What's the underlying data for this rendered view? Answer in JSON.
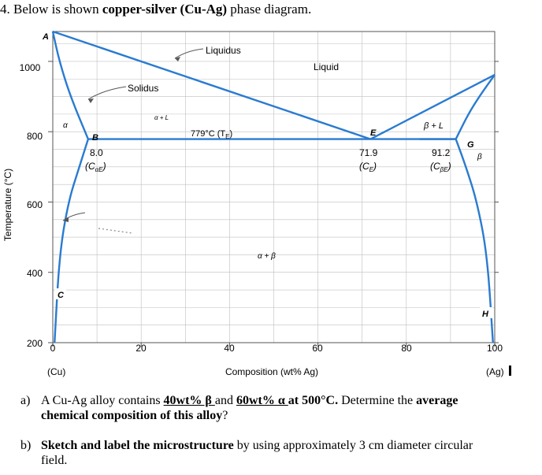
{
  "heading": {
    "number": "4. Below is shown ",
    "bold": "copper-silver (Cu-Ag)",
    "rest": " phase diagram."
  },
  "axes": {
    "ylabel": "Temperature (°C)",
    "xlabel": "Composition (wt% Ag)",
    "left_end": "(Cu)",
    "right_end": "(Ag)",
    "y_ticks": [
      "1000",
      "800",
      "600",
      "400",
      "200"
    ],
    "x_ticks": [
      "0",
      "20",
      "40",
      "60",
      "80",
      "100"
    ]
  },
  "labels": {
    "A": "A",
    "liquidus": "Liquidus",
    "liquid": "Liquid",
    "solidus": "Solidus",
    "alpha_liquid": "α + L",
    "alpha": "α",
    "B": "B",
    "eutectic_temp": "779°C (T",
    "eutectic_temp_sub": "E",
    "E": "E",
    "beta_liquid": "β + L",
    "G": "G",
    "beta": "β",
    "cae_value": "8.0",
    "cae": "(C",
    "cae_sub": "αE",
    "ce_value": "71.9",
    "ce": "(C",
    "ce_sub": "E",
    "cbe_value": "91.2",
    "cbe": "(C",
    "cbe_sub": "βE",
    "alpha_beta": "α + β",
    "C": "C",
    "H": "H"
  },
  "chart_data": {
    "type": "line",
    "xlabel": "Composition (wt% Ag)",
    "ylabel": "Temperature (°C)",
    "xlim": [
      0,
      100
    ],
    "ylim": [
      200,
      1085
    ],
    "grid": true,
    "series": [
      {
        "points": [
          [
            0,
            1085
          ],
          [
            71.9,
            779
          ]
        ]
      },
      {
        "points": [
          [
            71.9,
            779
          ],
          [
            100,
            962
          ]
        ]
      },
      {
        "points": [
          [
            0,
            1085
          ],
          [
            1.5,
            1000
          ],
          [
            4,
            900
          ],
          [
            8,
            779
          ]
        ]
      },
      {
        "points": [
          [
            100,
            962
          ],
          [
            96.5,
            900
          ],
          [
            94,
            850
          ],
          [
            91.2,
            779
          ]
        ]
      },
      {
        "points": [
          [
            8,
            779
          ],
          [
            91.2,
            779
          ]
        ]
      },
      {
        "points": [
          [
            8,
            779
          ],
          [
            6,
            700
          ],
          [
            3.5,
            600
          ],
          [
            1.5,
            450
          ],
          [
            0.4,
            200
          ]
        ]
      },
      {
        "points": [
          [
            91.2,
            779
          ],
          [
            93.5,
            700
          ],
          [
            96,
            600
          ],
          [
            98.3,
            450
          ],
          [
            99.6,
            200
          ]
        ]
      }
    ],
    "annotations": [
      {
        "text": "8.0",
        "x": 8.0,
        "y": 779
      },
      {
        "text": "71.9",
        "x": 71.9,
        "y": 779
      },
      {
        "text": "91.2",
        "x": 91.2,
        "y": 779
      }
    ]
  },
  "questions": {
    "a_label": "a)",
    "a_text1": "A Cu-Ag alloy contains ",
    "a_u1": "40wt% β ",
    "a_text2": "and ",
    "a_u2": "60wt% α ",
    "a_bold1": "at 500°C.",
    "a_text3": " Determine the ",
    "a_bold2": "average",
    "a_bold3": "chemical composition of this alloy",
    "a_text4": "?",
    "b_label": "b)",
    "b_bold": "Sketch and label the microstructure",
    "b_text": " by using approximately 3 cm diameter circular",
    "b_text2": "field."
  },
  "colors": {
    "curve": "#2a7bd0",
    "grid": "#bfbfbf",
    "axis": "#555555"
  }
}
